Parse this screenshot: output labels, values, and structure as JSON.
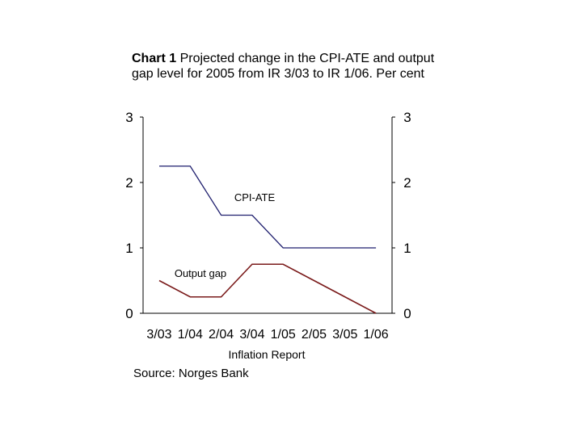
{
  "title": {
    "bold": "Chart 1",
    "text": " Projected change in the CPI-ATE and output gap level for 2005 from IR 3/03 to IR 1/06. Per cent"
  },
  "source": "Source: Norges Bank",
  "chart_data": {
    "type": "line",
    "title": "Chart 1 Projected change in the CPI-ATE and output gap level for 2005 from IR 3/03 to IR 1/06. Per cent",
    "xlabel": "Inflation Report",
    "ylabel": "",
    "categories": [
      "3/03",
      "1/04",
      "2/04",
      "3/04",
      "1/05",
      "2/05",
      "3/05",
      "1/06"
    ],
    "ylim": [
      0,
      3
    ],
    "yticks": [
      0,
      1,
      2,
      3
    ],
    "grid": false,
    "series": [
      {
        "name": "CPI-ATE",
        "color": "#1f1f6e",
        "values": [
          2.25,
          2.25,
          1.5,
          1.5,
          1.0,
          1.0,
          1.0,
          1.0
        ]
      },
      {
        "name": "Output gap",
        "color": "#7a1a1a",
        "values": [
          0.5,
          0.25,
          0.25,
          0.75,
          0.75,
          0.5,
          0.25,
          0.0
        ]
      }
    ]
  }
}
